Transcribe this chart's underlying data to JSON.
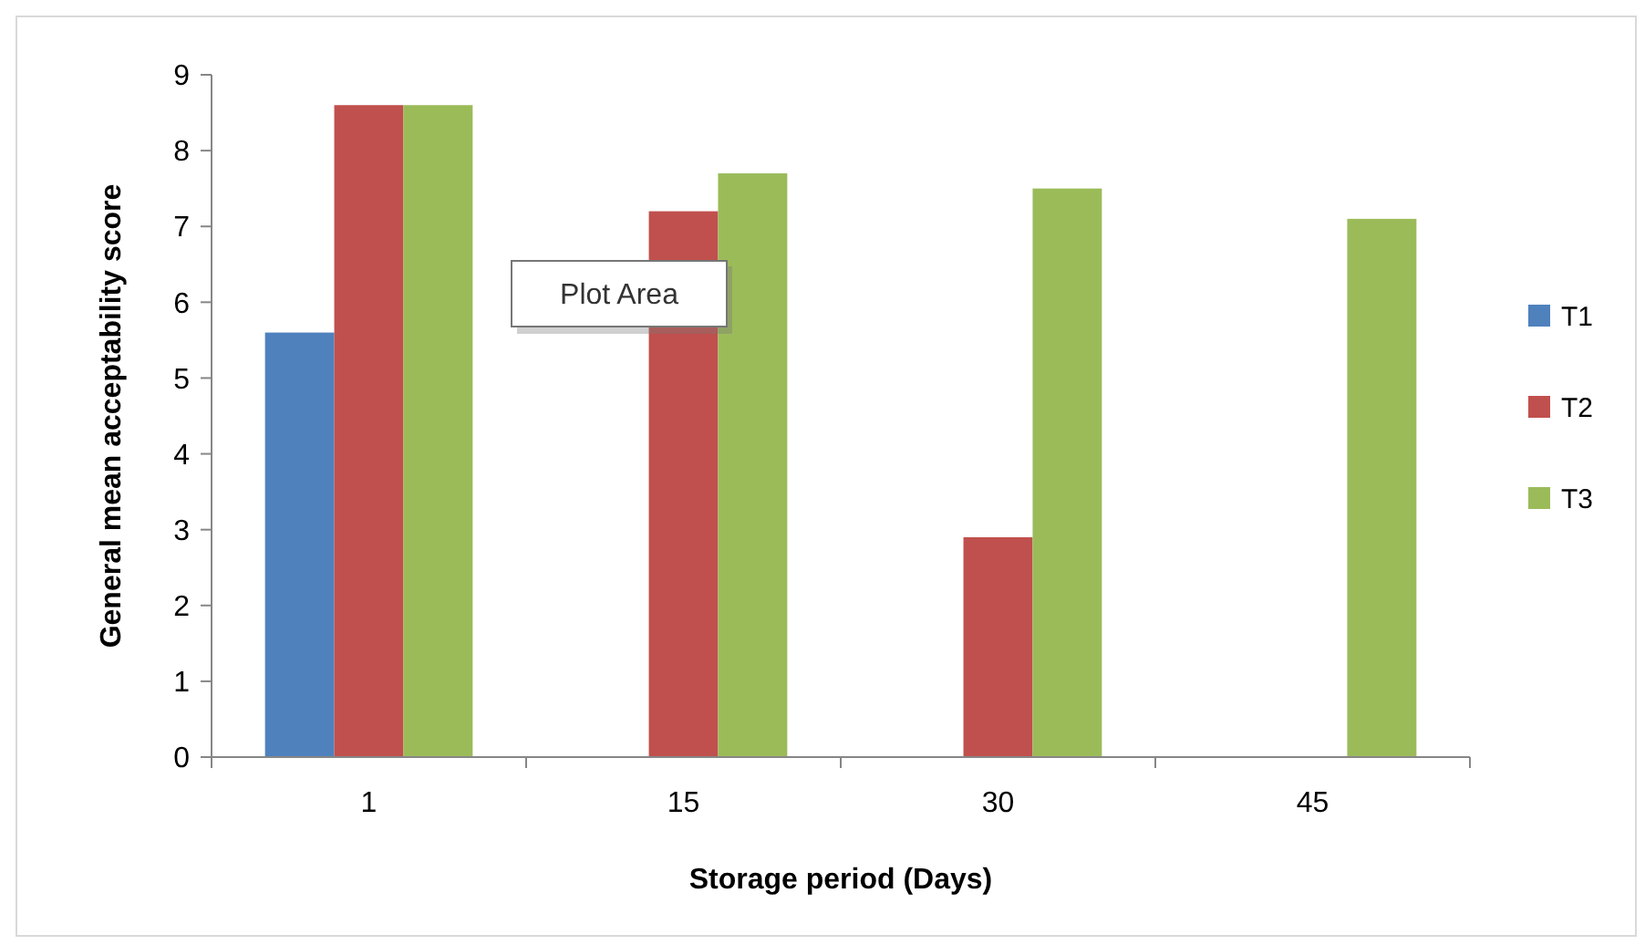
{
  "chart_data": {
    "type": "bar",
    "xlabel": "Storage period (Days)",
    "ylabel": "General mean acceptability score",
    "categories": [
      "1",
      "15",
      "30",
      "45"
    ],
    "series": [
      {
        "name": "T1",
        "color": "#4f81bd",
        "values": [
          5.6,
          null,
          null,
          null
        ]
      },
      {
        "name": "T2",
        "color": "#c0504d",
        "values": [
          8.6,
          7.2,
          2.9,
          null
        ]
      },
      {
        "name": "T3",
        "color": "#9bbb59",
        "values": [
          8.6,
          7.7,
          7.5,
          7.1
        ]
      }
    ],
    "ylim": [
      0,
      9
    ],
    "yticks": [
      0,
      1,
      2,
      3,
      4,
      5,
      6,
      7,
      8,
      9
    ],
    "legend": "right",
    "annotations": [
      "Plot Area"
    ]
  }
}
